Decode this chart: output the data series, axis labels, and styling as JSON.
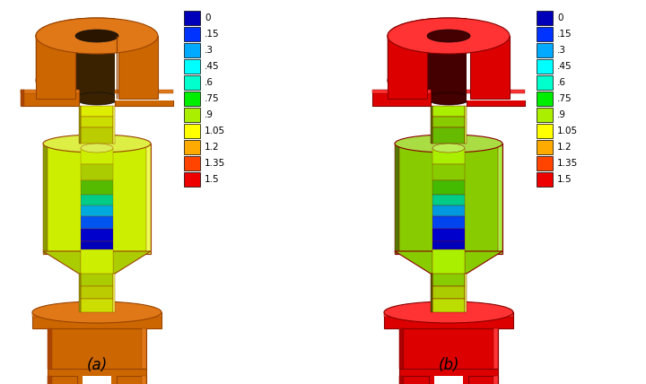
{
  "legend_labels": [
    "0",
    ".15",
    ".3",
    ".45",
    ".6",
    ".75",
    ".9",
    "1.05",
    "1.2",
    "1.35",
    "1.5"
  ],
  "legend_colors": [
    "#0000bb",
    "#0033ff",
    "#00aaff",
    "#00ffff",
    "#00ffcc",
    "#00ee00",
    "#aaee00",
    "#ffff00",
    "#ffaa00",
    "#ff4400",
    "#ee0000"
  ],
  "label_a": "(a)",
  "label_b": "(b)",
  "bg_color": "#ffffff",
  "fig_width": 7.2,
  "fig_height": 4.28,
  "dpi": 100,
  "orange": "#cc6600",
  "orange_light": "#e07818",
  "orange_dark": "#aa4400",
  "orange_shadow": "#994400",
  "red": "#dd0000",
  "red_light": "#ff3333",
  "red_dark": "#aa0000"
}
